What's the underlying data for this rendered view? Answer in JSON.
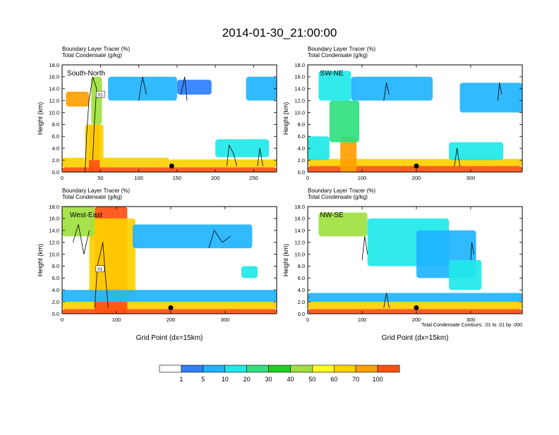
{
  "figure": {
    "title": "2014-01-30_21:00:00",
    "x_axis_title": "Grid Point (dx=15km)",
    "contour_note": "Total Condensate Contours: .01 to .01 by .000"
  },
  "colorbar": {
    "colors": [
      "#ffffff",
      "#2f7fff",
      "#1fb4ff",
      "#20e8e8",
      "#30e080",
      "#20d020",
      "#a0e040",
      "#ffff20",
      "#ffd000",
      "#ffa000",
      "#ff5010",
      "#f01010"
    ],
    "labels": [
      "1",
      "5",
      "10",
      "20",
      "30",
      "40",
      "50",
      "60",
      "70",
      "100"
    ]
  },
  "chart_data": [
    {
      "type": "heatmap",
      "name": "south-north",
      "label": "South-North",
      "title_line1": "Boundary Layer Tracer   (%)",
      "title_line2": "Total Condensate   (g/kg)",
      "ylabel": "Height (km)",
      "xlabel": "",
      "xlim": [
        0,
        280
      ],
      "ylim": [
        0,
        18
      ],
      "xticks": [
        0,
        50,
        100,
        150,
        200,
        250
      ],
      "yticks": [
        0,
        2,
        4,
        6,
        8,
        10,
        12,
        14,
        16,
        18
      ],
      "ytick_labels": [
        "0.0",
        "2.0",
        "4.0",
        "6.0",
        "8.0",
        "10.0",
        "12.0",
        "14.0",
        "16.0",
        "18.0"
      ],
      "marker": [
        143,
        1.0
      ],
      "contour_labels": [
        {
          "text": "01",
          "x": 50,
          "y": 13
        }
      ],
      "blobs": [
        {
          "x": 0,
          "w": 280,
          "y": 0,
          "h": 0.8,
          "level": 10
        },
        {
          "x": 0,
          "w": 140,
          "y": 0.8,
          "h": 1.6,
          "level": 8
        },
        {
          "x": 140,
          "w": 140,
          "y": 0.8,
          "h": 1.3,
          "level": 8
        },
        {
          "x": 35,
          "w": 14,
          "y": 0,
          "h": 8.0,
          "level": 10
        },
        {
          "x": 30,
          "w": 24,
          "y": 2,
          "h": 6,
          "level": 8
        },
        {
          "x": 5,
          "w": 30,
          "y": 11,
          "h": 2.5,
          "level": 9
        },
        {
          "x": 38,
          "w": 14,
          "y": 8,
          "h": 8,
          "level": 6
        },
        {
          "x": 60,
          "w": 90,
          "y": 12,
          "h": 4,
          "level": 2
        },
        {
          "x": 150,
          "w": 45,
          "y": 13,
          "h": 2.5,
          "level": 1
        },
        {
          "x": 240,
          "w": 40,
          "y": 12,
          "h": 4,
          "level": 2
        },
        {
          "x": 200,
          "w": 70,
          "y": 2.5,
          "h": 3,
          "level": 3
        }
      ],
      "contour_lines": [
        [
          [
            30,
            0
          ],
          [
            32,
            6
          ],
          [
            35,
            12
          ],
          [
            40,
            16
          ],
          [
            45,
            14
          ],
          [
            42,
            8
          ],
          [
            40,
            2
          ]
        ],
        [
          [
            100,
            12
          ],
          [
            105,
            16
          ],
          [
            110,
            13
          ]
        ],
        [
          [
            155,
            13
          ],
          [
            160,
            16
          ],
          [
            163,
            12
          ]
        ],
        [
          [
            215,
            1
          ],
          [
            218,
            4.5
          ],
          [
            224,
            3
          ],
          [
            228,
            1
          ]
        ],
        [
          [
            255,
            1
          ],
          [
            258,
            4
          ],
          [
            262,
            1
          ]
        ]
      ]
    },
    {
      "type": "heatmap",
      "name": "sw-ne",
      "label": "SW-NE",
      "title_line1": "Boundary Layer Tracer   (%)",
      "title_line2": "Total Condensate   (g/kg)",
      "ylabel": "Height (km)",
      "xlabel": "",
      "xlim": [
        0,
        395
      ],
      "ylim": [
        0,
        18
      ],
      "xticks": [
        0,
        100,
        200,
        300
      ],
      "yticks": [
        0,
        2,
        4,
        6,
        8,
        10,
        12,
        14,
        16,
        18
      ],
      "ytick_labels": [
        "0.0",
        "2.0",
        "4.0",
        "6.0",
        "8.0",
        "10.0",
        "12.0",
        "14.0",
        "16.0",
        "18.0"
      ],
      "marker": [
        200,
        1.0
      ],
      "contour_labels": [],
      "blobs": [
        {
          "x": 0,
          "w": 395,
          "y": 0,
          "h": 1.0,
          "level": 10
        },
        {
          "x": 0,
          "w": 395,
          "y": 1.0,
          "h": 1.2,
          "level": 8
        },
        {
          "x": 60,
          "w": 30,
          "y": 0,
          "h": 6,
          "level": 9
        },
        {
          "x": 40,
          "w": 55,
          "y": 5,
          "h": 7,
          "level": 4
        },
        {
          "x": 20,
          "w": 60,
          "y": 12,
          "h": 5,
          "level": 3
        },
        {
          "x": 80,
          "w": 150,
          "y": 12,
          "h": 4,
          "level": 2
        },
        {
          "x": 280,
          "w": 115,
          "y": 10,
          "h": 5,
          "level": 2
        },
        {
          "x": 260,
          "w": 100,
          "y": 2,
          "h": 3,
          "level": 3
        },
        {
          "x": 0,
          "w": 40,
          "y": 2,
          "h": 4,
          "level": 3
        }
      ],
      "contour_lines": [
        [
          [
            140,
            12
          ],
          [
            145,
            15
          ],
          [
            150,
            13
          ]
        ],
        [
          [
            270,
            1
          ],
          [
            275,
            4
          ],
          [
            280,
            1
          ]
        ],
        [
          [
            350,
            12
          ],
          [
            353,
            15
          ],
          [
            357,
            13
          ]
        ]
      ]
    },
    {
      "type": "heatmap",
      "name": "west-east",
      "label": "West-East",
      "title_line1": "Boundary Layer Tracer   (%)",
      "title_line2": "Total Condensate   (g/kg)",
      "ylabel": "Height (km)",
      "xlabel": "Grid Point (dx=15km)",
      "xlim": [
        0,
        395
      ],
      "ylim": [
        0,
        18
      ],
      "xticks": [
        0,
        100,
        200,
        300
      ],
      "yticks": [
        0,
        2,
        4,
        6,
        8,
        10,
        12,
        14,
        16,
        18
      ],
      "ytick_labels": [
        "0.0",
        "2.0",
        "4.0",
        "6.0",
        "8.0",
        "10.0",
        "12.0",
        "14.0",
        "16.0",
        "18.0"
      ],
      "marker": [
        200,
        1.0
      ],
      "contour_labels": [
        {
          "text": "01",
          "x": 70,
          "y": 7.5
        }
      ],
      "blobs": [
        {
          "x": 0,
          "w": 395,
          "y": 0,
          "h": 0.8,
          "level": 10
        },
        {
          "x": 0,
          "w": 395,
          "y": 0.8,
          "h": 1.2,
          "level": 8
        },
        {
          "x": 60,
          "w": 60,
          "y": 0,
          "h": 18,
          "level": 10
        },
        {
          "x": 50,
          "w": 85,
          "y": 2,
          "h": 14,
          "level": 8
        },
        {
          "x": 0,
          "w": 60,
          "y": 13,
          "h": 5,
          "level": 6
        },
        {
          "x": 130,
          "w": 220,
          "y": 11,
          "h": 4,
          "level": 2
        },
        {
          "x": 330,
          "w": 30,
          "y": 6,
          "h": 2,
          "level": 3
        },
        {
          "x": 0,
          "w": 395,
          "y": 2,
          "h": 2,
          "level": 2
        }
      ],
      "contour_lines": [
        [
          [
            20,
            12
          ],
          [
            30,
            15
          ],
          [
            40,
            10
          ],
          [
            50,
            14
          ]
        ],
        [
          [
            60,
            1
          ],
          [
            65,
            8
          ],
          [
            75,
            12
          ],
          [
            80,
            6
          ],
          [
            85,
            1
          ]
        ],
        [
          [
            270,
            11
          ],
          [
            280,
            14
          ],
          [
            295,
            12
          ],
          [
            310,
            13
          ]
        ]
      ]
    },
    {
      "type": "heatmap",
      "name": "nw-se",
      "label": "NW-SE",
      "title_line1": "Boundary Layer Tracer   (%)",
      "title_line2": "Total Condensate   (g/kg)",
      "ylabel": "Height (km)",
      "xlabel": "Grid Point (dx=15km)",
      "xlim": [
        0,
        395
      ],
      "ylim": [
        0,
        18
      ],
      "xticks": [
        0,
        100,
        200,
        300
      ],
      "yticks": [
        0,
        2,
        4,
        6,
        8,
        10,
        12,
        14,
        16,
        18
      ],
      "ytick_labels": [
        "0.0",
        "2.0",
        "4.0",
        "6.0",
        "8.0",
        "10.0",
        "12.0",
        "14.0",
        "16.0",
        "18.0"
      ],
      "marker": [
        200,
        1.0
      ],
      "contour_labels": [],
      "blobs": [
        {
          "x": 0,
          "w": 395,
          "y": 0,
          "h": 0.8,
          "level": 10
        },
        {
          "x": 0,
          "w": 395,
          "y": 0.8,
          "h": 1.2,
          "level": 8
        },
        {
          "x": 20,
          "w": 90,
          "y": 13,
          "h": 4,
          "level": 6
        },
        {
          "x": 110,
          "w": 150,
          "y": 8,
          "h": 8,
          "level": 3
        },
        {
          "x": 200,
          "w": 110,
          "y": 6,
          "h": 8,
          "level": 2
        },
        {
          "x": 260,
          "w": 60,
          "y": 4,
          "h": 5,
          "level": 3
        },
        {
          "x": 0,
          "w": 395,
          "y": 2,
          "h": 1.5,
          "level": 2
        }
      ],
      "contour_lines": [
        [
          [
            100,
            9
          ],
          [
            105,
            13
          ],
          [
            110,
            10
          ]
        ],
        [
          [
            300,
            9
          ],
          [
            302,
            12
          ],
          [
            306,
            10
          ]
        ],
        [
          [
            140,
            1
          ],
          [
            145,
            3.5
          ],
          [
            150,
            1
          ]
        ]
      ]
    }
  ]
}
